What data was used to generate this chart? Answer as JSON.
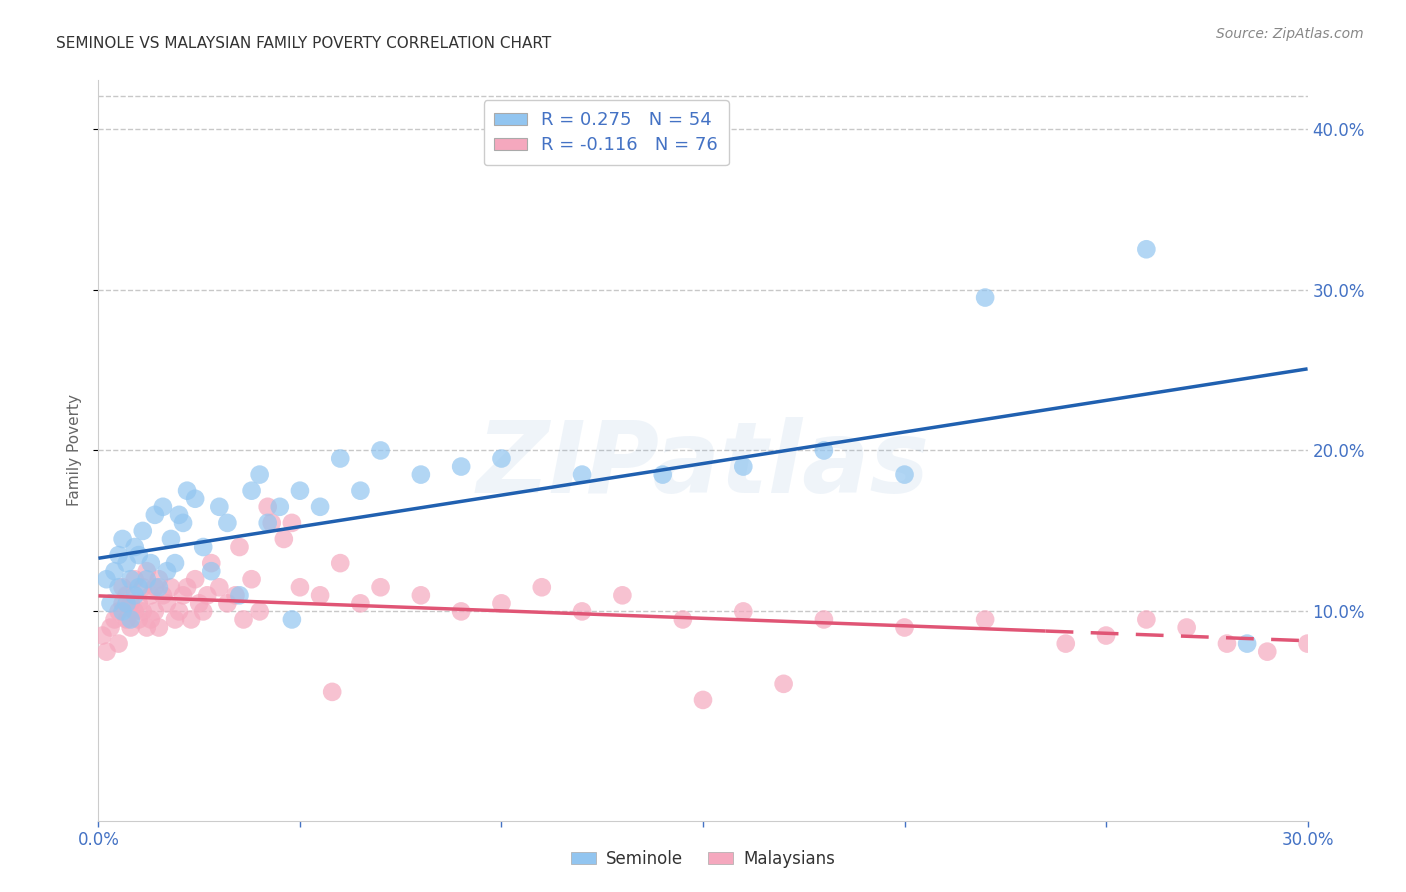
{
  "title": "SEMINOLE VS MALAYSIAN FAMILY POVERTY CORRELATION CHART",
  "source": "Source: ZipAtlas.com",
  "ylabel": "Family Poverty",
  "xlim": [
    0.0,
    0.3
  ],
  "ylim": [
    -0.03,
    0.43
  ],
  "yticks": [
    0.1,
    0.2,
    0.3,
    0.4
  ],
  "xticks": [
    0.0,
    0.05,
    0.1,
    0.15,
    0.2,
    0.25,
    0.3
  ],
  "legend_label_seminole": "Seminole",
  "legend_label_malaysian": "Malaysians",
  "seminole_color": "#92C5F0",
  "malaysian_color": "#F5A8BE",
  "line_seminole_color": "#2060B0",
  "line_malaysian_color": "#E05575",
  "background_color": "#FFFFFF",
  "grid_color": "#BBBBBB",
  "title_color": "#333333",
  "axis_label_color": "#666666",
  "tick_label_color": "#4472C4",
  "watermark_text": "ZIPatlas",
  "watermark_alpha": 0.1,
  "seminole_x": [
    0.002,
    0.003,
    0.004,
    0.005,
    0.005,
    0.006,
    0.006,
    0.007,
    0.007,
    0.008,
    0.008,
    0.009,
    0.009,
    0.01,
    0.01,
    0.011,
    0.012,
    0.013,
    0.014,
    0.015,
    0.016,
    0.017,
    0.018,
    0.019,
    0.02,
    0.021,
    0.022,
    0.024,
    0.026,
    0.028,
    0.03,
    0.032,
    0.035,
    0.038,
    0.04,
    0.042,
    0.045,
    0.048,
    0.05,
    0.055,
    0.06,
    0.065,
    0.07,
    0.08,
    0.09,
    0.1,
    0.12,
    0.14,
    0.16,
    0.18,
    0.2,
    0.22,
    0.26,
    0.285
  ],
  "seminole_y": [
    0.12,
    0.105,
    0.125,
    0.115,
    0.135,
    0.1,
    0.145,
    0.105,
    0.13,
    0.095,
    0.12,
    0.11,
    0.14,
    0.115,
    0.135,
    0.15,
    0.12,
    0.13,
    0.16,
    0.115,
    0.165,
    0.125,
    0.145,
    0.13,
    0.16,
    0.155,
    0.175,
    0.17,
    0.14,
    0.125,
    0.165,
    0.155,
    0.11,
    0.175,
    0.185,
    0.155,
    0.165,
    0.095,
    0.175,
    0.165,
    0.195,
    0.175,
    0.2,
    0.185,
    0.19,
    0.195,
    0.185,
    0.185,
    0.19,
    0.2,
    0.185,
    0.295,
    0.325,
    0.08
  ],
  "malaysian_x": [
    0.001,
    0.002,
    0.003,
    0.004,
    0.005,
    0.005,
    0.006,
    0.006,
    0.007,
    0.007,
    0.008,
    0.008,
    0.009,
    0.009,
    0.01,
    0.01,
    0.011,
    0.011,
    0.012,
    0.012,
    0.013,
    0.013,
    0.014,
    0.014,
    0.015,
    0.015,
    0.016,
    0.017,
    0.018,
    0.019,
    0.02,
    0.021,
    0.022,
    0.023,
    0.024,
    0.025,
    0.026,
    0.027,
    0.028,
    0.03,
    0.032,
    0.034,
    0.036,
    0.038,
    0.04,
    0.043,
    0.046,
    0.05,
    0.055,
    0.06,
    0.065,
    0.07,
    0.08,
    0.09,
    0.1,
    0.11,
    0.12,
    0.13,
    0.145,
    0.16,
    0.18,
    0.2,
    0.22,
    0.24,
    0.25,
    0.26,
    0.27,
    0.28,
    0.29,
    0.3,
    0.035,
    0.042,
    0.048,
    0.058,
    0.15,
    0.17
  ],
  "malaysian_y": [
    0.085,
    0.075,
    0.09,
    0.095,
    0.08,
    0.1,
    0.105,
    0.115,
    0.095,
    0.11,
    0.09,
    0.105,
    0.1,
    0.12,
    0.095,
    0.105,
    0.1,
    0.115,
    0.09,
    0.125,
    0.095,
    0.11,
    0.115,
    0.1,
    0.09,
    0.12,
    0.11,
    0.105,
    0.115,
    0.095,
    0.1,
    0.11,
    0.115,
    0.095,
    0.12,
    0.105,
    0.1,
    0.11,
    0.13,
    0.115,
    0.105,
    0.11,
    0.095,
    0.12,
    0.1,
    0.155,
    0.145,
    0.115,
    0.11,
    0.13,
    0.105,
    0.115,
    0.11,
    0.1,
    0.105,
    0.115,
    0.1,
    0.11,
    0.095,
    0.1,
    0.095,
    0.09,
    0.095,
    0.08,
    0.085,
    0.095,
    0.09,
    0.08,
    0.075,
    0.08,
    0.14,
    0.165,
    0.155,
    0.05,
    0.045,
    0.055
  ]
}
